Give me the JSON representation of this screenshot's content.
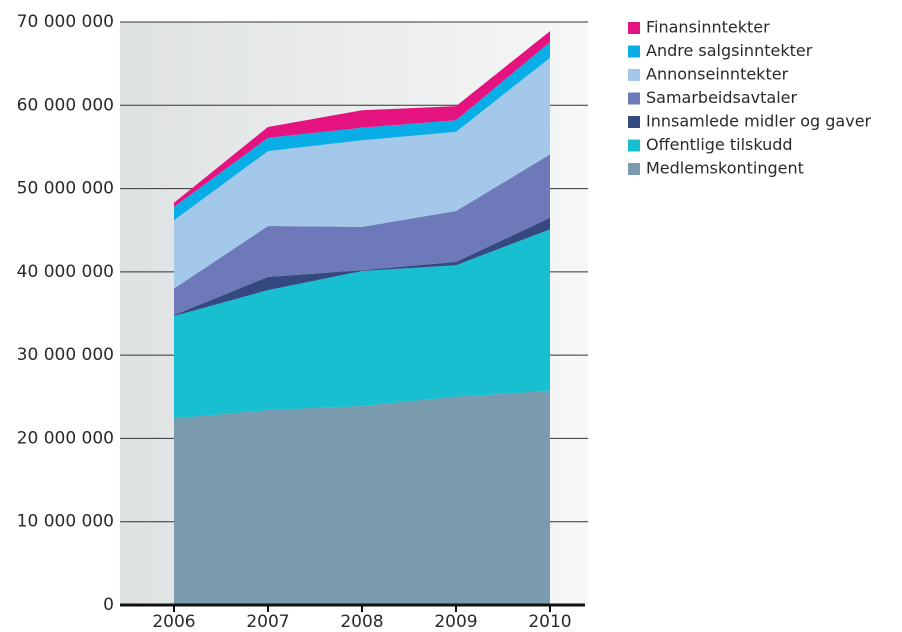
{
  "chart_data": {
    "type": "stacked_area",
    "categories": [
      "2006",
      "2007",
      "2008",
      "2009",
      "2010"
    ],
    "series": [
      {
        "name": "Medlemskontingent",
        "color": "#7a9aae",
        "values": [
          22400000,
          23400000,
          23900000,
          25000000,
          25700000
        ]
      },
      {
        "name": "Offentlige tilskudd",
        "color": "#17bfd0",
        "values": [
          12300000,
          14400000,
          16200000,
          15800000,
          19400000
        ]
      },
      {
        "name": "Innsamlede midler og gaver",
        "color": "#34497f",
        "values": [
          100000,
          1600000,
          100000,
          400000,
          1400000
        ]
      },
      {
        "name": "Samarbeidsavtaler",
        "color": "#6e79b9",
        "values": [
          3200000,
          6100000,
          5200000,
          6100000,
          7600000
        ]
      },
      {
        "name": "Annonseinntekter",
        "color": "#a3c8ea",
        "values": [
          8200000,
          9000000,
          10400000,
          9500000,
          11600000
        ]
      },
      {
        "name": "Andre salgsinntekter",
        "color": "#0aaee6",
        "values": [
          1600000,
          1600000,
          1500000,
          1400000,
          1900000
        ]
      },
      {
        "name": "Finansinntekter",
        "color": "#e5137f",
        "values": [
          500000,
          1300000,
          2100000,
          1700000,
          1300000
        ]
      }
    ],
    "ylim": [
      0,
      70000000
    ],
    "yticks": [
      0,
      {
        "value": 10000000,
        "label": "10 000 000"
      },
      {
        "value": 20000000,
        "label": "20 000 000"
      },
      {
        "value": 30000000,
        "label": "30 000 000"
      },
      {
        "value": 40000000,
        "label": "40 000 000"
      },
      {
        "value": 50000000,
        "label": "50 000 000"
      },
      {
        "value": 60000000,
        "label": "60 000 000"
      },
      {
        "value": 70000000,
        "label": "70 000 000"
      }
    ],
    "grid": true,
    "legend": "right"
  }
}
